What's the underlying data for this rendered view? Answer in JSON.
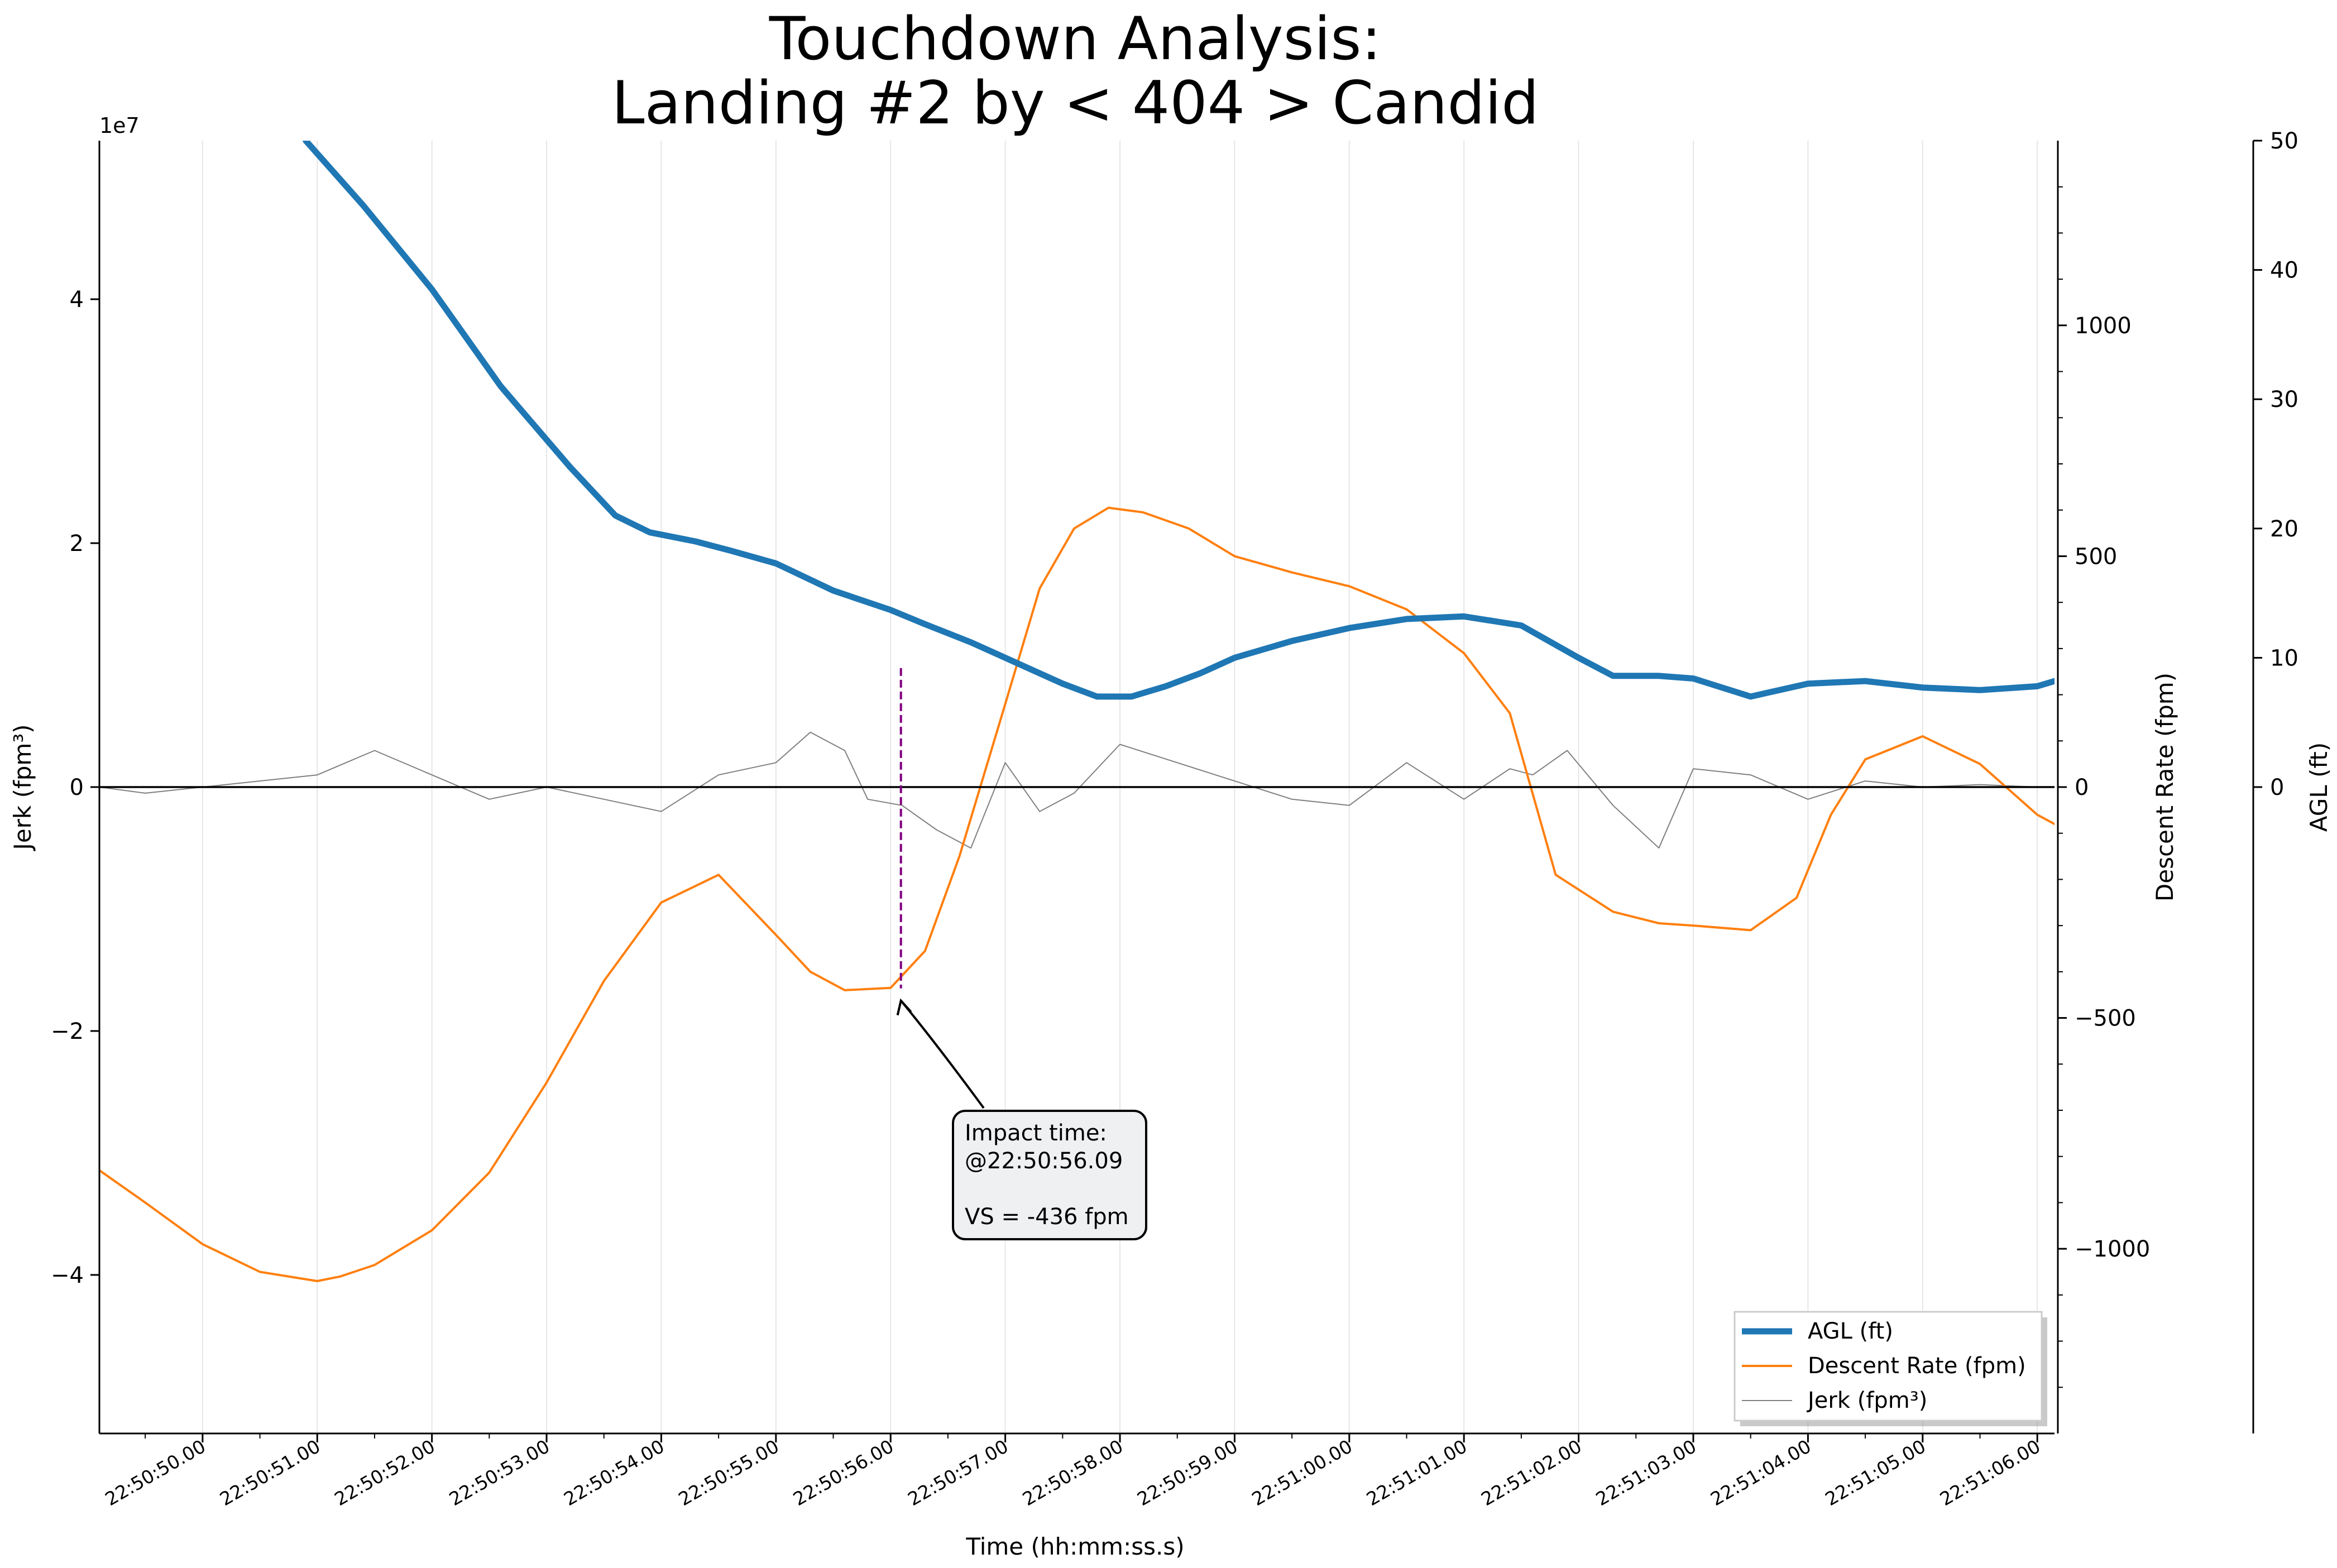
{
  "chart_data": {
    "type": "line",
    "title": [
      "Touchdown Analysis:",
      "Landing #2 by < 404 > Candid"
    ],
    "xlabel": "Time (hh:mm:ss.s)",
    "x_range_seconds_after_22_50_49": [
      0.1,
      17.15
    ],
    "x_ticks": [
      "22:50:50.00",
      "22:50:51.00",
      "22:50:52.00",
      "22:50:53.00",
      "22:50:54.00",
      "22:50:55.00",
      "22:50:56.00",
      "22:50:57.00",
      "22:50:58.00",
      "22:50:59.00",
      "22:51:00.00",
      "22:51:01.00",
      "22:51:02.00",
      "22:51:03.00",
      "22:51:04.00",
      "22:51:05.00",
      "22:51:06.00"
    ],
    "axes": {
      "jerk": {
        "label": "Jerk (fpm³)",
        "side": "left",
        "offset_label": "1e7",
        "ylim": [
          -5.3,
          5.3
        ],
        "ticks": [
          4,
          2,
          0,
          -2,
          -4
        ],
        "tick_labels": [
          "4",
          "2",
          "0",
          "−2",
          "−4"
        ]
      },
      "descent_rate": {
        "label": "Descent Rate (fpm)",
        "side": "right",
        "ylim": [
          -1400,
          1400
        ],
        "ticks": [
          1000,
          500,
          0,
          -500,
          -1000
        ],
        "tick_labels": [
          "1000",
          "500",
          "0",
          "−500",
          "−1000"
        ]
      },
      "agl": {
        "label": "AGL (ft)",
        "side": "right-outer",
        "ylim": [
          -50,
          50
        ],
        "ticks": [
          50,
          40,
          30,
          20,
          10,
          0
        ],
        "tick_labels": [
          "50",
          "40",
          "30",
          "20",
          "10",
          "0"
        ]
      }
    },
    "legend": {
      "position": "bottom-right",
      "entries": [
        "AGL (ft)",
        "Descent Rate (fpm)",
        "Jerk (fpm³)"
      ]
    },
    "series": [
      {
        "name": "AGL (ft)",
        "axis": "agl",
        "color": "#1f77b4",
        "x": [
          1.9,
          2.4,
          3.0,
          3.6,
          4.2,
          4.6,
          4.9,
          5.3,
          5.6,
          6.0,
          6.5,
          7.0,
          7.3,
          7.7,
          8.1,
          8.5,
          8.8,
          9.1,
          9.4,
          9.7,
          10.0,
          10.5,
          11.0,
          11.5,
          12.0,
          12.5,
          13.0,
          13.3,
          13.7,
          14.0,
          14.5,
          15.0,
          15.5,
          16.0,
          16.5,
          17.0,
          17.15
        ],
        "values": [
          50,
          45,
          38.5,
          31,
          24.8,
          21,
          19.7,
          19.0,
          18.3,
          17.3,
          15.2,
          13.7,
          12.6,
          11.2,
          9.6,
          8.0,
          7.0,
          7.0,
          7.8,
          8.8,
          10.0,
          11.3,
          12.3,
          13.0,
          13.2,
          12.5,
          10.0,
          8.6,
          8.6,
          8.4,
          7.0,
          8.0,
          8.2,
          7.7,
          7.5,
          7.8,
          8.2
        ]
      },
      {
        "name": "Descent Rate (fpm)",
        "axis": "descent_rate",
        "color": "#ff7f0e",
        "x": [
          0.1,
          0.5,
          1.0,
          1.5,
          2.0,
          2.2,
          2.5,
          3.0,
          3.5,
          4.0,
          4.5,
          5.0,
          5.5,
          6.0,
          6.3,
          6.6,
          7.0,
          7.3,
          7.6,
          8.0,
          8.3,
          8.6,
          8.9,
          9.2,
          9.6,
          10.0,
          10.5,
          11.0,
          11.5,
          12.0,
          12.4,
          12.8,
          13.3,
          13.7,
          14.0,
          14.5,
          14.9,
          15.2,
          15.5,
          16.0,
          16.5,
          17.0,
          17.15
        ],
        "values": [
          -830,
          -900,
          -990,
          -1050,
          -1070,
          -1060,
          -1035,
          -960,
          -835,
          -640,
          -420,
          -250,
          -190,
          -320,
          -400,
          -440,
          -435,
          -355,
          -150,
          180,
          430,
          560,
          605,
          595,
          560,
          500,
          465,
          435,
          385,
          290,
          160,
          -190,
          -270,
          -295,
          -300,
          -310,
          -240,
          -60,
          60,
          110,
          50,
          -60,
          -80
        ]
      },
      {
        "name": "Jerk (fpm³)",
        "axis": "jerk",
        "color": "#808080",
        "x": [
          0.1,
          0.5,
          1.0,
          1.5,
          2.0,
          2.5,
          3.0,
          3.5,
          4.0,
          4.5,
          5.0,
          5.5,
          6.0,
          6.3,
          6.6,
          6.8,
          7.1,
          7.4,
          7.7,
          8.0,
          8.3,
          8.6,
          9.0,
          9.5,
          10.0,
          10.5,
          11.0,
          11.5,
          12.0,
          12.4,
          12.6,
          12.9,
          13.3,
          13.7,
          14.0,
          14.5,
          15.0,
          15.5,
          16.0,
          16.5,
          17.0,
          17.15
        ],
        "values": [
          0,
          -0.05,
          0,
          0.05,
          0.1,
          0.3,
          0.1,
          -0.1,
          0,
          -0.1,
          -0.2,
          0.1,
          0.2,
          0.45,
          0.3,
          -0.1,
          -0.15,
          -0.35,
          -0.5,
          0.2,
          -0.2,
          -0.05,
          0.35,
          0.2,
          0.05,
          -0.1,
          -0.15,
          0.2,
          -0.1,
          0.15,
          0.1,
          0.3,
          -0.15,
          -0.5,
          0.15,
          0.1,
          -0.1,
          0.05,
          0,
          0.02,
          0,
          0
        ]
      }
    ],
    "annotation": {
      "text_lines": [
        "Impact time:",
        "@22:50:56.09",
        "",
        "VS = -436 fpm"
      ],
      "point_time_s": 7.09,
      "point_value_fpm": -436,
      "marker_line_color": "#800080"
    }
  }
}
